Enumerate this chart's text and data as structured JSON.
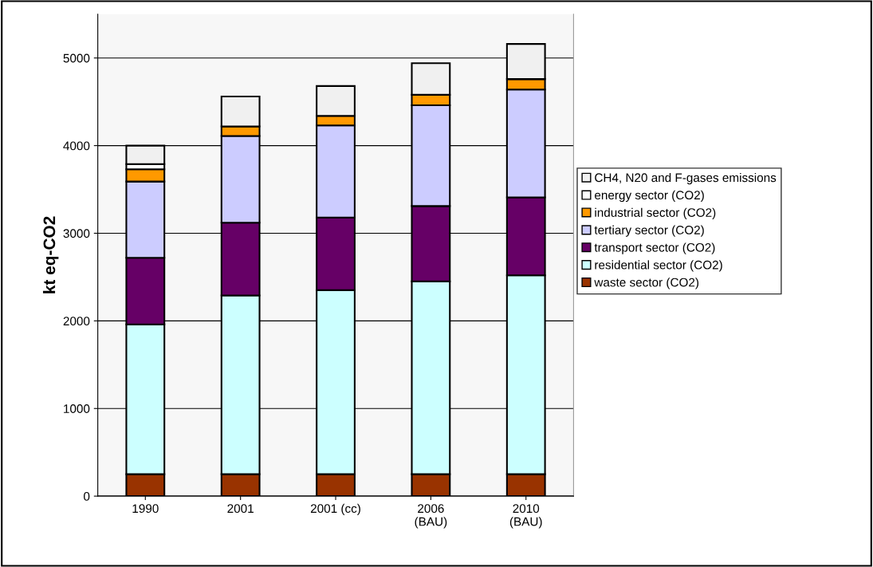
{
  "chart_data": {
    "type": "bar",
    "stacked": true,
    "ylabel": "kt eq-CO2",
    "categories": [
      "1990",
      "2001",
      "2001 (cc)",
      "2006\n(BAU)",
      "2010\n(BAU)"
    ],
    "series": [
      {
        "name": "waste sector (CO2)",
        "color": "#993300",
        "values": [
          250,
          250,
          250,
          250,
          250
        ]
      },
      {
        "name": "residential sector (CO2)",
        "color": "#ccffff",
        "values": [
          1710,
          2040,
          2100,
          2200,
          2270
        ]
      },
      {
        "name": "transport sector (CO2)",
        "color": "#660066",
        "values": [
          760,
          830,
          830,
          860,
          890
        ]
      },
      {
        "name": "tertiary sector (CO2)",
        "color": "#ccccff",
        "values": [
          870,
          990,
          1050,
          1150,
          1230
        ]
      },
      {
        "name": "industrial sector (CO2)",
        "color": "#ff9900",
        "values": [
          140,
          110,
          110,
          120,
          120
        ]
      },
      {
        "name": "energy sector (CO2)",
        "color": "#ffffff",
        "values": [
          60,
          null,
          null,
          null,
          null
        ]
      },
      {
        "name": "CH4, N20 and F-gases emissions",
        "color": "#f0f0f0",
        "values": [
          210,
          340,
          340,
          360,
          400
        ]
      }
    ],
    "ylim": [
      0,
      5500
    ],
    "yticks": [
      0,
      1000,
      2000,
      3000,
      4000,
      5000
    ],
    "grid": "y",
    "legend": "right"
  }
}
